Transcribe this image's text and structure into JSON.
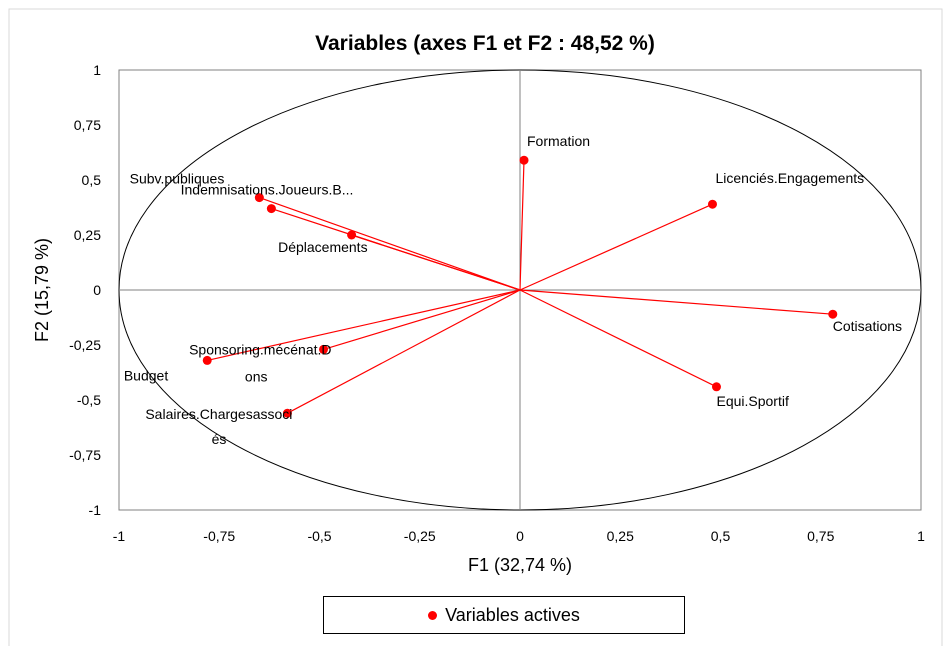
{
  "chart_data": {
    "type": "scatter",
    "title": "Variables (axes F1 et F2 : 48,52 %)",
    "xlabel": "F1 (32,74 %)",
    "ylabel": "F2 (15,79 %)",
    "xlim": [
      -1,
      1
    ],
    "ylim": [
      -1,
      1
    ],
    "x_ticks": [
      "-1",
      "-0,75",
      "-0,5",
      "-0,25",
      "0",
      "0,25",
      "0,5",
      "0,75",
      "1"
    ],
    "y_ticks": [
      "1",
      "0,75",
      "0,5",
      "0,25",
      "0",
      "-0,25",
      "-0,5",
      "-0,75",
      "-1"
    ],
    "correlation_circle": true,
    "vectors_from_origin": true,
    "series": [
      {
        "name": "Variables actives",
        "color": "#ff0000",
        "points": [
          {
            "label": "Formation",
            "x": 0.01,
            "y": 0.59
          },
          {
            "label": "Licenciés.Engagements",
            "x": 0.48,
            "y": 0.39
          },
          {
            "label": "Cotisations",
            "x": 0.78,
            "y": -0.11
          },
          {
            "label": "Equi.Sportif",
            "x": 0.49,
            "y": -0.44
          },
          {
            "label": "Subv.publiques",
            "x": -0.65,
            "y": 0.42
          },
          {
            "label": "Indemnisations.Joueurs.B...",
            "x": -0.62,
            "y": 0.37
          },
          {
            "label": "Déplacements",
            "x": -0.42,
            "y": 0.25
          },
          {
            "label": "Sponsoring.mécénat.Dons",
            "x": -0.49,
            "y": -0.27
          },
          {
            "label": "Budget",
            "x": -0.78,
            "y": -0.32
          },
          {
            "label": "Salaires.Chargesassociés",
            "x": -0.58,
            "y": -0.56
          }
        ]
      }
    ],
    "legend": {
      "position": "bottom",
      "label": "Variables actives"
    }
  }
}
